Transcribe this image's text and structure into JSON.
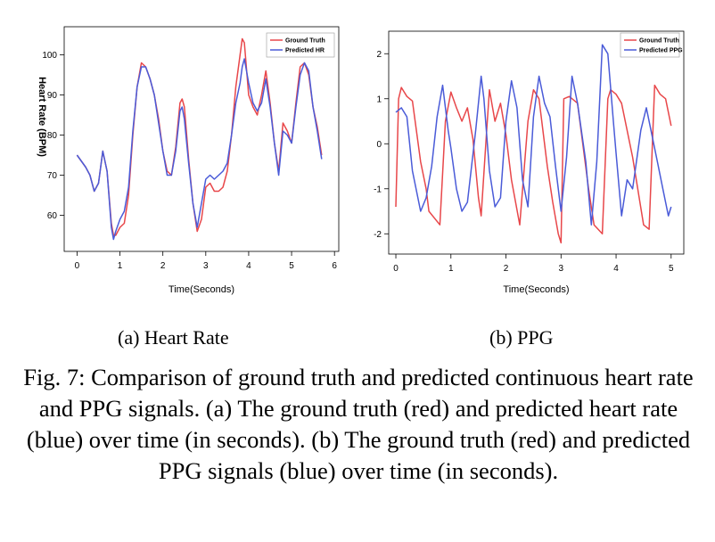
{
  "figure": {
    "subcaptions": [
      "(a) Heart Rate",
      "(b) PPG"
    ],
    "caption": "Fig. 7: Comparison of ground truth and predicted continuous heart rate and PPG signals. (a) The ground truth (red) and predicted heart rate (blue) over time (in seconds). (b) The ground truth (red) and predicted PPG signals (blue) over time (in seconds)."
  },
  "chart_data": [
    {
      "type": "line",
      "xlabel": "Time(Seconds)",
      "ylabel": "Heart Rate (BPM)",
      "xlim": [
        -0.3,
        6.1
      ],
      "ylim": [
        51,
        107
      ],
      "xticks": [
        0,
        1,
        2,
        3,
        4,
        5,
        6
      ],
      "yticks": [
        60,
        70,
        80,
        90,
        100
      ],
      "grid": false,
      "legend_position": "top-right",
      "series": [
        {
          "name": "Ground Truth",
          "color": "#e8474a",
          "x": [
            0,
            0.2,
            0.3,
            0.4,
            0.5,
            0.6,
            0.7,
            0.8,
            0.85,
            0.9,
            1.0,
            1.1,
            1.2,
            1.3,
            1.4,
            1.5,
            1.6,
            1.7,
            1.8,
            1.9,
            2.0,
            2.1,
            2.2,
            2.3,
            2.4,
            2.45,
            2.5,
            2.6,
            2.7,
            2.8,
            2.9,
            3.0,
            3.1,
            3.2,
            3.3,
            3.4,
            3.5,
            3.6,
            3.7,
            3.8,
            3.85,
            3.9,
            4.0,
            4.1,
            4.2,
            4.3,
            4.4,
            4.5,
            4.6,
            4.7,
            4.8,
            4.9,
            5.0,
            5.1,
            5.2,
            5.3,
            5.4,
            5.5,
            5.6,
            5.7
          ],
          "values": [
            75,
            72,
            70,
            66,
            68,
            76,
            71,
            58,
            55,
            55,
            57,
            58,
            65,
            80,
            92,
            98,
            97,
            94,
            90,
            84,
            76,
            71,
            70,
            77,
            88,
            89,
            87,
            74,
            63,
            56,
            59,
            67,
            68,
            66,
            66,
            67,
            71,
            80,
            92,
            100,
            104,
            103,
            90,
            87,
            85,
            90,
            96,
            88,
            78,
            71,
            83,
            81,
            78,
            88,
            97,
            98,
            95,
            87,
            82,
            75
          ]
        },
        {
          "name": "Predicted HR",
          "color": "#4a5bd8",
          "x": [
            0,
            0.2,
            0.3,
            0.4,
            0.5,
            0.6,
            0.7,
            0.8,
            0.85,
            0.9,
            1.0,
            1.1,
            1.2,
            1.3,
            1.4,
            1.5,
            1.6,
            1.7,
            1.8,
            1.9,
            2.0,
            2.1,
            2.2,
            2.3,
            2.4,
            2.45,
            2.5,
            2.6,
            2.7,
            2.8,
            2.9,
            3.0,
            3.1,
            3.2,
            3.3,
            3.4,
            3.5,
            3.6,
            3.7,
            3.8,
            3.85,
            3.9,
            4.0,
            4.1,
            4.2,
            4.3,
            4.4,
            4.5,
            4.6,
            4.7,
            4.8,
            4.9,
            5.0,
            5.1,
            5.2,
            5.3,
            5.4,
            5.5,
            5.6,
            5.7
          ],
          "values": [
            75,
            72,
            70,
            66,
            68,
            76,
            71,
            57,
            54,
            56,
            59,
            61,
            67,
            81,
            92,
            97,
            97,
            94,
            90,
            83,
            76,
            70,
            70,
            76,
            86,
            87,
            84,
            73,
            63,
            57,
            63,
            69,
            70,
            69,
            70,
            71,
            73,
            80,
            88,
            93,
            97,
            99,
            93,
            88,
            86,
            88,
            94,
            87,
            78,
            70,
            81,
            80,
            78,
            87,
            95,
            98,
            96,
            87,
            81,
            74
          ]
        }
      ]
    },
    {
      "type": "line",
      "xlabel": "Time(Seconds)",
      "ylabel": "",
      "xlim": [
        -0.13,
        5.23
      ],
      "ylim": [
        -2.45,
        2.5
      ],
      "xticks": [
        0,
        1,
        2,
        3,
        4,
        5
      ],
      "yticks": [
        -2,
        -1,
        0,
        1,
        2
      ],
      "grid": false,
      "legend_position": "top-right",
      "series": [
        {
          "name": "Ground Truth",
          "color": "#e8474a",
          "x": [
            0,
            0.05,
            0.1,
            0.2,
            0.3,
            0.45,
            0.55,
            0.6,
            0.8,
            0.9,
            1.0,
            1.1,
            1.2,
            1.3,
            1.4,
            1.5,
            1.55,
            1.65,
            1.7,
            1.8,
            1.9,
            2.0,
            2.1,
            2.25,
            2.4,
            2.5,
            2.6,
            2.75,
            2.85,
            2.95,
            3.0,
            3.05,
            3.15,
            3.3,
            3.5,
            3.6,
            3.75,
            3.85,
            3.9,
            4.0,
            4.1,
            4.3,
            4.5,
            4.6,
            4.7,
            4.8,
            4.9,
            5.0
          ],
          "values": [
            -1.4,
            1.0,
            1.25,
            1.05,
            0.95,
            -0.4,
            -1.0,
            -1.5,
            -1.8,
            0.5,
            1.15,
            0.8,
            0.5,
            0.8,
            0.1,
            -1.2,
            -1.6,
            0.3,
            1.2,
            0.5,
            0.9,
            0.2,
            -0.8,
            -1.8,
            0.5,
            1.2,
            1.0,
            -0.5,
            -1.3,
            -2.0,
            -2.2,
            1.0,
            1.05,
            0.9,
            -1.0,
            -1.8,
            -2.0,
            1.0,
            1.2,
            1.1,
            0.9,
            -0.3,
            -1.8,
            -1.9,
            1.3,
            1.1,
            1.0,
            0.4
          ]
        },
        {
          "name": "Predicted PPG",
          "color": "#4a5bd8",
          "x": [
            0,
            0.1,
            0.2,
            0.3,
            0.45,
            0.55,
            0.65,
            0.75,
            0.85,
            0.95,
            1.0,
            1.1,
            1.2,
            1.3,
            1.45,
            1.55,
            1.6,
            1.7,
            1.8,
            1.9,
            2.0,
            2.1,
            2.2,
            2.3,
            2.4,
            2.5,
            2.6,
            2.7,
            2.8,
            2.9,
            3.0,
            3.1,
            3.2,
            3.3,
            3.45,
            3.55,
            3.65,
            3.75,
            3.85,
            3.95,
            4.0,
            4.1,
            4.2,
            4.3,
            4.45,
            4.55,
            4.65,
            4.75,
            4.85,
            4.95,
            5.0
          ],
          "values": [
            0.7,
            0.8,
            0.6,
            -0.6,
            -1.5,
            -1.2,
            -0.5,
            0.6,
            1.3,
            0.3,
            -0.1,
            -1.0,
            -1.5,
            -1.3,
            0.3,
            1.5,
            1.0,
            -0.6,
            -1.4,
            -1.2,
            0.5,
            1.4,
            0.8,
            -0.8,
            -1.4,
            0.6,
            1.5,
            0.9,
            0.6,
            -0.5,
            -1.5,
            -0.3,
            1.5,
            0.9,
            -0.4,
            -1.8,
            -0.4,
            2.2,
            2.0,
            0.5,
            -0.2,
            -1.6,
            -0.8,
            -1.0,
            0.3,
            0.8,
            0.2,
            -0.4,
            -1.0,
            -1.6,
            -1.4
          ]
        }
      ]
    }
  ]
}
